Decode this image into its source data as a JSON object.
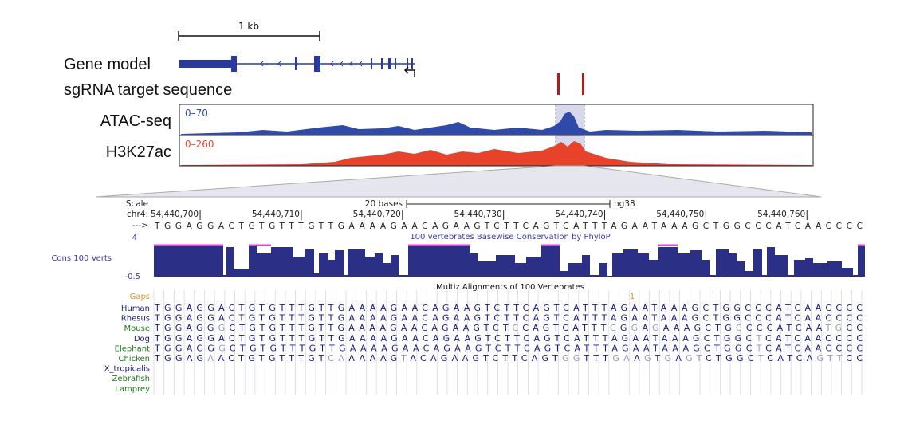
{
  "scale_bar": "1 kb",
  "track_labels": {
    "gene_model": "Gene model",
    "sgrna": "sgRNA target sequence",
    "atac": "ATAC-seq",
    "h3k27ac": "H3K27ac"
  },
  "ranges": {
    "atac": "0–70",
    "h3k27ac": "0–260"
  },
  "browser": {
    "scale_label": "Scale",
    "scale_bar": "20 bases",
    "assembly": "hg38",
    "chrom": "chr4:",
    "positions": [
      "54,440,700",
      "54,440,710",
      "54,440,720",
      "54,440,730",
      "54,440,740",
      "54,440,750",
      "54,440,760"
    ],
    "strand": "--->",
    "reference": "TGGAGGACTGTGTTTGTTGAAAAGAACAGAAGTCTTCAGTCATTTAGAATAAAGCTGGCCCATCAACCCC",
    "phylop_title": "100 vertebrates Basewise Conservation by PhyloP",
    "cons_label": "Cons 100 Verts",
    "cons_max": "4",
    "cons_min": "-0.5",
    "multiz_title": "Multiz Alignments of 100 Vertebrates",
    "gaps_label": "Gaps",
    "gap_count": "1",
    "species": [
      {
        "name": "Human",
        "sequence": "TGGAGGACTGTGTTTGTTGAAAAGAACAGAAGTCTTCAGTCATTTAGAATAAAGCTGGCCCATCAACCCC"
      },
      {
        "name": "Rhesus",
        "sequence": "TGGAGGACTGTGTTTGTTGAAAAGAACAGAAGTCTTCAGTCATTTAGAATAAAGCTGGCCCATCAACCCC"
      },
      {
        "name": "Mouse",
        "sequence": "TGGAGGGCTGTGTTTGTTGAAAAGAACAGAAGTCTCCAGTCATTTCGGAGAAAGCTGCCCCATCAATGCC"
      },
      {
        "name": "Dog",
        "sequence": "TGGAGGACTGTGTTTGTTGAAAAGAACAGAAGTCTTCAGTCATTTAGAATAAAGCTGGCTCATCAACCCC"
      },
      {
        "name": "Elephant",
        "sequence": "TGGAGGGCTGTGTTTGTTGAAAAGAACAGAAGTCTTCAGTCATTTAGAATAAAGCTGGCTCATCAACCCC"
      },
      {
        "name": "Chicken",
        "sequence": "TGGAGAACTGTGTTTGTCAAAAAGTACAGAAGTCTTCAGTGGTTTGAAGTGAGTCTGGCTCATCAGTTCC"
      },
      {
        "name": "X_tropicalis"
      },
      {
        "name": "Zebrafish"
      },
      {
        "name": "Lamprey"
      }
    ]
  }
}
